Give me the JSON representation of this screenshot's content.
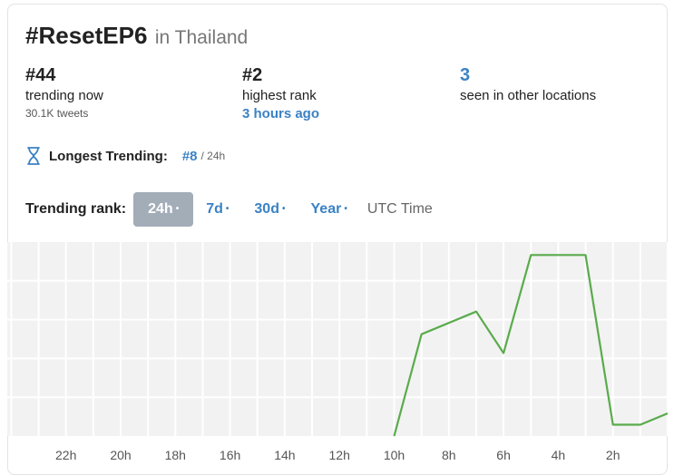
{
  "header": {
    "hashtag": "#ResetEP6",
    "location": "in Thailand"
  },
  "stats": [
    {
      "value": "#44",
      "label": "trending now",
      "sub": "30.1K tweets"
    },
    {
      "value": "#2",
      "label": "highest rank",
      "time": "3 hours ago"
    },
    {
      "value": "3",
      "label": "seen in other locations"
    }
  ],
  "longest": {
    "label": "Longest Trending:",
    "rank": "#8",
    "period": "/ 24h",
    "icon": "hourglass-icon"
  },
  "rank_tabs": {
    "label": "Trending rank:",
    "tabs": [
      {
        "label": "24h",
        "active": true
      },
      {
        "label": "7d",
        "active": false
      },
      {
        "label": "30d",
        "active": false
      },
      {
        "label": "Year",
        "active": false
      }
    ],
    "dot": "•",
    "utc": "UTC Time"
  },
  "colors": {
    "accent": "#3b82c4",
    "line": "#5aab4c",
    "grid_bg": "#f2f2f2",
    "active_tab": "#a3adb8"
  },
  "chart_data": {
    "type": "line",
    "title": "",
    "xlabel": "",
    "ylabel": "",
    "y_inverted": true,
    "ylim": [
      50,
      0
    ],
    "x_tick_labels": [
      "22h",
      "20h",
      "18h",
      "16h",
      "14h",
      "12h",
      "10h",
      "8h",
      "6h",
      "4h",
      "2h"
    ],
    "series": [
      {
        "values": [
          {
            "hours_ago": 10,
            "rank": 50
          },
          {
            "hours_ago": 9,
            "rank": 23
          },
          {
            "hours_ago": 7,
            "rank": 17
          },
          {
            "hours_ago": 6.0,
            "rank": 28
          },
          {
            "hours_ago": 5,
            "rank": 2
          },
          {
            "hours_ago": 3,
            "rank": 2
          },
          {
            "hours_ago": 2,
            "rank": 47
          },
          {
            "hours_ago": 1,
            "rank": 47
          },
          {
            "hours_ago": 0,
            "rank": 44
          }
        ]
      }
    ],
    "grid": true
  }
}
